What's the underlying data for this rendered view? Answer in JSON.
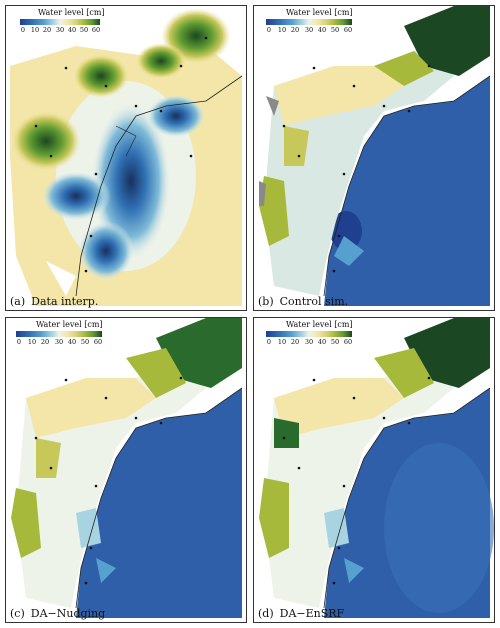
{
  "colorbar": {
    "title": "Water level [cm]",
    "ticks": [
      "0",
      "10",
      "20",
      "30",
      "40",
      "50",
      "60"
    ],
    "colors": [
      "#1f3f8f",
      "#2f6fb3",
      "#56a0cf",
      "#a8d4e2",
      "#eef3ea",
      "#f3e6a8",
      "#d9d27a",
      "#a7b93a",
      "#5e9a31",
      "#2a6b2d",
      "#1b4722"
    ]
  },
  "panels": [
    {
      "letter": "(a)",
      "label": "Data interp."
    },
    {
      "letter": "(b)",
      "label": "Control sim."
    },
    {
      "letter": "(c)",
      "label": "DA−Nudging"
    },
    {
      "letter": "(d)",
      "label": "DA−EnSRF"
    }
  ]
}
